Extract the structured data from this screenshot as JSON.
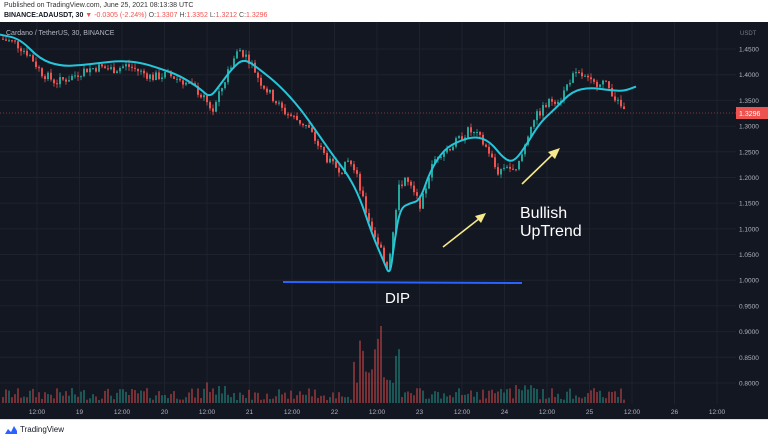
{
  "header": {
    "published": "Published on TradingView.com, June 25, 2021 08:13:38 UTC",
    "symbol": "BINANCE:ADAUSDT, 30",
    "change_arrow": "▼",
    "change": "-0.0305 (-2.24%)",
    "open_label": "O:",
    "open": "1.3307",
    "high_label": "H:",
    "high": "1.3352",
    "low_label": "L:",
    "low": "1.3212",
    "close_label": "C:",
    "close": "1.3296"
  },
  "chart": {
    "legend": "Cardano / TetherUS, 30, BINANCE",
    "currency": "USDT",
    "current_price": "1.3296",
    "price_ticks": [
      "1.4500",
      "1.4000",
      "1.3500",
      "1.3000",
      "1.2500",
      "1.2000",
      "1.1500",
      "1.1000",
      "1.0500",
      "1.0000",
      "0.9500",
      "0.9000",
      "0.8500",
      "0.8000"
    ],
    "time_ticks": [
      "12:00",
      "19",
      "12:00",
      "20",
      "12:00",
      "21",
      "12:00",
      "22",
      "12:00",
      "23",
      "12:00",
      "24",
      "12:00",
      "25",
      "12:00",
      "26",
      "12:00"
    ],
    "annotations": {
      "dip": "DIP",
      "trend_line1": "Bullish",
      "trend_line2": "UpTrend"
    },
    "colors": {
      "background": "#131722",
      "up": "#26a69a",
      "down": "#ef5350",
      "moving_average": "#26c6da",
      "dip_line": "#2962ff",
      "arrow": "#f5e98a",
      "price_label": "#ef5350"
    }
  },
  "chart_data": {
    "type": "candlestick",
    "path_closes": [
      [
        0,
        1.47
      ],
      [
        14,
        1.462
      ],
      [
        28,
        1.44
      ],
      [
        40,
        1.405
      ],
      [
        55,
        1.385
      ],
      [
        70,
        1.395
      ],
      [
        84,
        1.41
      ],
      [
        98,
        1.415
      ],
      [
        112,
        1.41
      ],
      [
        126,
        1.418
      ],
      [
        140,
        1.405
      ],
      [
        152,
        1.395
      ],
      [
        166,
        1.4
      ],
      [
        180,
        1.39
      ],
      [
        196,
        1.37
      ],
      [
        206,
        1.345
      ],
      [
        212,
        1.33
      ],
      [
        220,
        1.37
      ],
      [
        230,
        1.42
      ],
      [
        238,
        1.45
      ],
      [
        248,
        1.43
      ],
      [
        260,
        1.385
      ],
      [
        270,
        1.36
      ],
      [
        282,
        1.33
      ],
      [
        294,
        1.315
      ],
      [
        306,
        1.3
      ],
      [
        318,
        1.26
      ],
      [
        330,
        1.225
      ],
      [
        342,
        1.215
      ],
      [
        348,
        1.235
      ],
      [
        356,
        1.2
      ],
      [
        364,
        1.14
      ],
      [
        372,
        1.095
      ],
      [
        380,
        1.06
      ],
      [
        386,
        1.025
      ],
      [
        392,
        1.09
      ],
      [
        398,
        1.18
      ],
      [
        404,
        1.2
      ],
      [
        412,
        1.17
      ],
      [
        420,
        1.145
      ],
      [
        428,
        1.205
      ],
      [
        436,
        1.245
      ],
      [
        446,
        1.255
      ],
      [
        456,
        1.27
      ],
      [
        468,
        1.292
      ],
      [
        478,
        1.278
      ],
      [
        488,
        1.25
      ],
      [
        496,
        1.21
      ],
      [
        506,
        1.225
      ],
      [
        514,
        1.205
      ],
      [
        522,
        1.25
      ],
      [
        530,
        1.305
      ],
      [
        540,
        1.33
      ],
      [
        550,
        1.35
      ],
      [
        560,
        1.355
      ],
      [
        570,
        1.395
      ],
      [
        580,
        1.4
      ],
      [
        592,
        1.38
      ],
      [
        600,
        1.39
      ],
      [
        610,
        1.37
      ],
      [
        618,
        1.34
      ],
      [
        624,
        1.33
      ]
    ],
    "ma_points": [
      [
        0,
        1.478
      ],
      [
        20,
        1.47
      ],
      [
        40,
        1.43
      ],
      [
        60,
        1.417
      ],
      [
        80,
        1.418
      ],
      [
        100,
        1.423
      ],
      [
        120,
        1.427
      ],
      [
        140,
        1.424
      ],
      [
        160,
        1.412
      ],
      [
        180,
        1.398
      ],
      [
        200,
        1.373
      ],
      [
        210,
        1.355
      ],
      [
        220,
        1.38
      ],
      [
        232,
        1.412
      ],
      [
        244,
        1.432
      ],
      [
        260,
        1.41
      ],
      [
        280,
        1.378
      ],
      [
        300,
        1.335
      ],
      [
        318,
        1.285
      ],
      [
        334,
        1.24
      ],
      [
        348,
        1.205
      ],
      [
        360,
        1.16
      ],
      [
        372,
        1.09
      ],
      [
        384,
        1.035
      ],
      [
        390,
        1.008
      ],
      [
        394,
        1.07
      ],
      [
        400,
        1.14
      ],
      [
        410,
        1.15
      ],
      [
        420,
        1.155
      ],
      [
        430,
        1.212
      ],
      [
        444,
        1.255
      ],
      [
        460,
        1.272
      ],
      [
        476,
        1.28
      ],
      [
        490,
        1.27
      ],
      [
        504,
        1.236
      ],
      [
        514,
        1.23
      ],
      [
        526,
        1.262
      ],
      [
        540,
        1.307
      ],
      [
        556,
        1.335
      ],
      [
        572,
        1.368
      ],
      [
        590,
        1.375
      ],
      [
        610,
        1.37
      ],
      [
        624,
        1.368
      ],
      [
        636,
        1.377
      ]
    ]
  }
}
